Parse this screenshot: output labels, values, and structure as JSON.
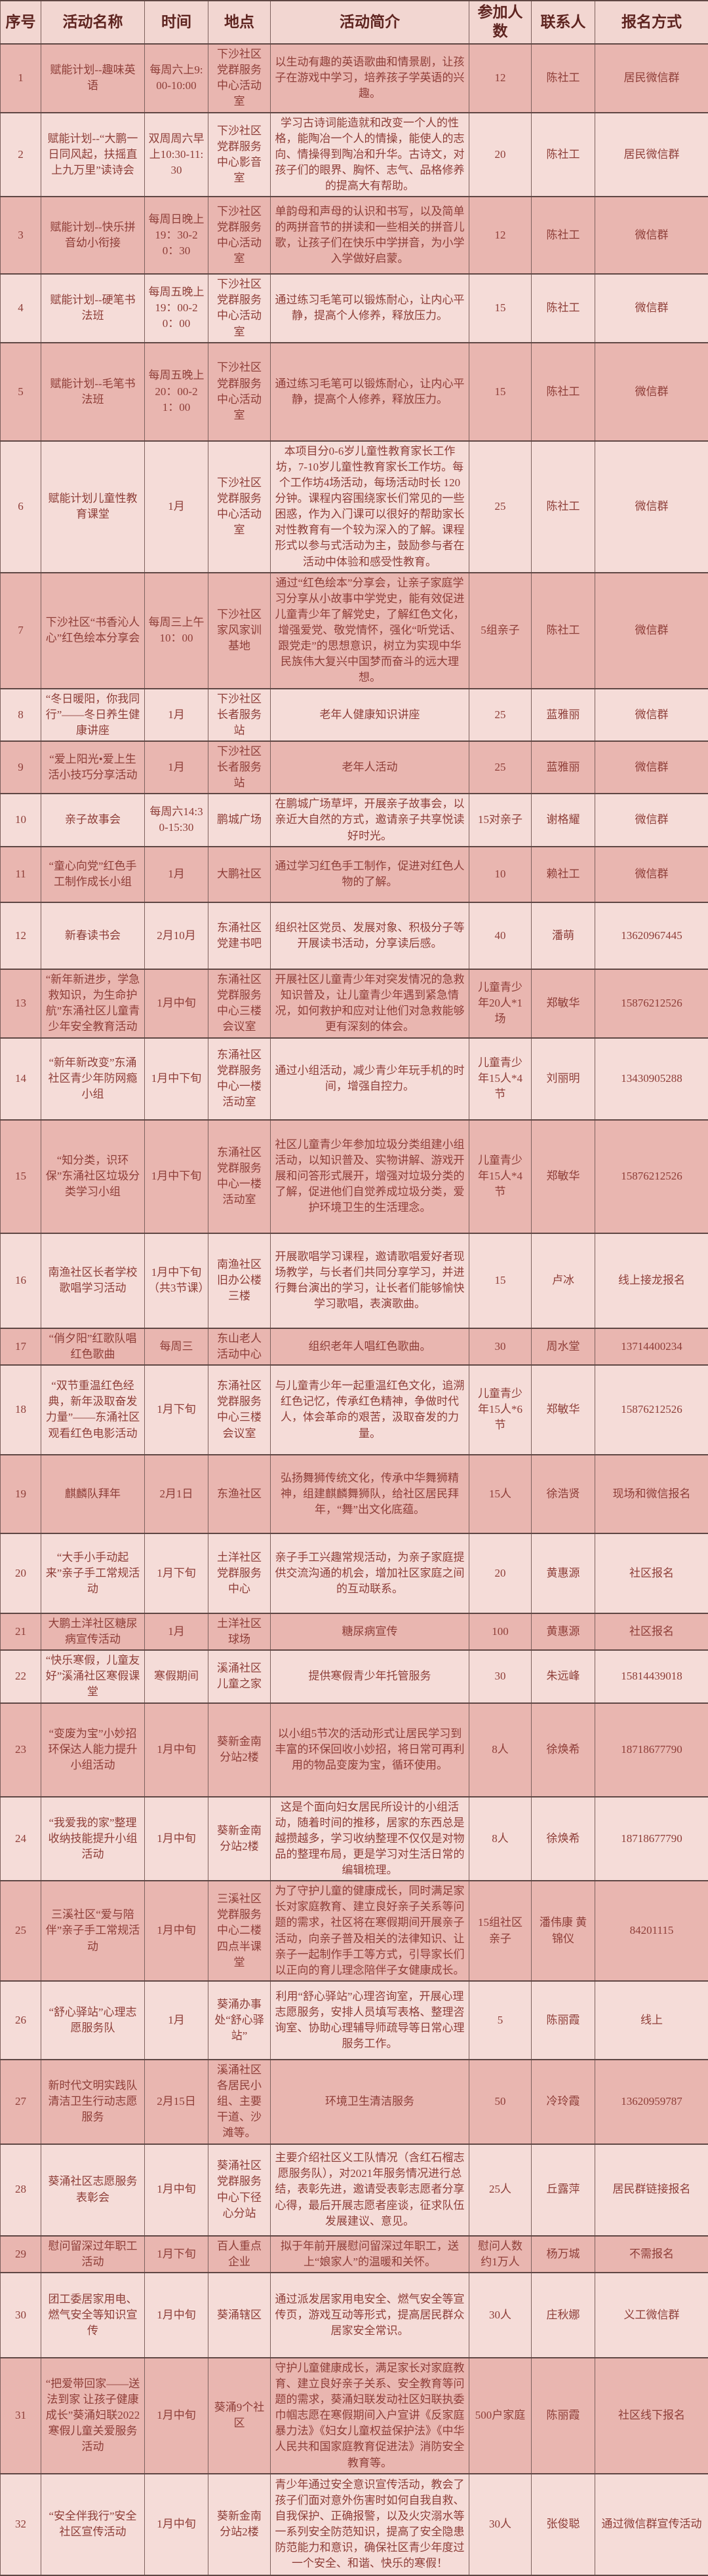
{
  "colors": {
    "header_bg": "#f2d6d1",
    "row_dark_bg": "#e9b6b0",
    "row_light_bg": "#f5dcd8",
    "text": "#8e3e38",
    "grid_line": "#5f4744"
  },
  "table": {
    "columns": [
      {
        "key": "no",
        "label": "序号"
      },
      {
        "key": "name",
        "label": "活动名称"
      },
      {
        "key": "time",
        "label": "时间"
      },
      {
        "key": "place",
        "label": "地点"
      },
      {
        "key": "desc",
        "label": "活动简介"
      },
      {
        "key": "count",
        "label": "参加人数"
      },
      {
        "key": "contact",
        "label": "联系人"
      },
      {
        "key": "signup",
        "label": "报名方式"
      }
    ],
    "rows": [
      {
        "no": "1",
        "name": "赋能计划--趣味英语",
        "time": "每周六上9:00-10:00",
        "place": "下沙社区党群服务中心活动室",
        "desc": "以生动有趣的英语歌曲和情景剧，让孩子在游戏中学习，培养孩子学英语的兴趣。",
        "count": "12",
        "contact": "陈社工",
        "signup": "居民微信群"
      },
      {
        "no": "2",
        "name": "赋能计划--“大鹏一日同风起，扶摇直上九万里”读诗会",
        "time": "双周周六早上10:30-11:30",
        "place": "下沙社区党群服务中心影音室",
        "desc": "学习古诗词能造就和改变一个人的性格，能陶冶一个人的情操，能使人的志向、情操得到陶冶和升华。古诗文，对孩子们的眼界、胸怀、志气、品格修养的提高大有帮助。",
        "count": "20",
        "contact": "陈社工",
        "signup": "居民微信群"
      },
      {
        "no": "3",
        "name": "赋能计划--快乐拼音幼小衔接",
        "time": "每周日晚上19：30-20：30",
        "place": "下沙社区党群服务中心活动室",
        "desc": "单韵母和声母的认识和书写，以及简单的两拼音节的拼读和一些相关的拼音儿歌，让孩子们在快乐中学拼音，为小学入学做好启蒙。",
        "count": "12",
        "contact": "陈社工",
        "signup": "微信群"
      },
      {
        "no": "4",
        "name": "赋能计划--硬笔书法班",
        "time": "每周五晚上19：00-20：00",
        "place": "下沙社区党群服务中心活动室",
        "desc": "通过练习毛笔可以锻炼耐心，让内心平静，提高个人修养，释放压力。",
        "count": "15",
        "contact": "陈社工",
        "signup": "微信群"
      },
      {
        "no": "5",
        "name": "赋能计划--毛笔书法班",
        "time": "每周五晚上20：00-21：00",
        "place": "下沙社区党群服务中心活动室",
        "desc": "通过练习毛笔可以锻炼耐心，让内心平静，提高个人修养，释放压力。",
        "count": "15",
        "contact": "陈社工",
        "signup": "微信群"
      },
      {
        "no": "6",
        "name": "赋能计划儿童性教育课堂",
        "time": "1月",
        "place": "下沙社区党群服务中心活动室",
        "desc": "本项目分0-6岁儿童性教育家长工作坊，7-10岁儿童性教育家长工作坊。每个工作坊4场活动，每场活动时长 120 分钟。课程内容围绕家长们常见的一些困惑，作为入门课可以很好的帮助家长对性教育有一个较为深入的了解。课程形式以参与式活动为主，鼓励参与者在活动中体验和感受性教育。",
        "count": "25",
        "contact": "陈社工",
        "signup": "微信群"
      },
      {
        "no": "7",
        "name": "下沙社区“书香沁人心”红色绘本分享会",
        "time": "每周三上午10：00",
        "place": "下沙社区家风家训基地",
        "desc": "通过“红色绘本”分享会，让亲子家庭学习分享从小故事中学党史，能有效促进儿童青少年了解党史，了解红色文化，增强爱党、敬党情怀，强化“听党话、跟党走”的思想意识，树立为实现中华民族伟大复兴中国梦而奋斗的远大理想。",
        "count": "5组亲子",
        "contact": "陈社工",
        "signup": "微信群"
      },
      {
        "no": "8",
        "name": "“冬日暖阳，你我同行”——冬日养生健康讲座",
        "time": "1月",
        "place": "下沙社区长者服务站",
        "desc": "老年人健康知识讲座",
        "count": "25",
        "contact": "蓝雅丽",
        "signup": "微信群"
      },
      {
        "no": "9",
        "name": "“爱上阳光•爱上生活小技巧分享活动",
        "time": "1月",
        "place": "下沙社区长者服务站",
        "desc": "老年人活动",
        "count": "25",
        "contact": "蓝雅丽",
        "signup": "微信群"
      },
      {
        "no": "10",
        "name": "亲子故事会",
        "time": "每周六14:30-15:30",
        "place": "鹏城广场",
        "desc": "在鹏城广场草坪，开展亲子故事会，以亲近大自然的方式，邀请亲子共享悦读好时光。",
        "count": "15对亲子",
        "contact": "谢格耀",
        "signup": "微信群"
      },
      {
        "no": "11",
        "name": "“童心向党”红色手工制作成长小组",
        "time": "1月",
        "place": "大鹏社区",
        "desc": "通过学习红色手工制作，促进对红色人物的了解。",
        "count": "10",
        "contact": "赖社工",
        "signup": "微信群"
      },
      {
        "no": "12",
        "name": "新春读书会",
        "time": "2月10月",
        "place": "东涌社区党建书吧",
        "desc": "组织社区党员、发展对象、积极分子等开展读书活动，分享读后感。",
        "count": "40",
        "contact": "潘萌",
        "signup": "13620967445"
      },
      {
        "no": "13",
        "name": "“新年新进步，学急救知识，为生命护航”东涌社区儿童青少年安全教育活动",
        "time": "1月中旬",
        "place": "东涌社区党群服务中心三楼会议室",
        "desc": "开展社区儿童青少年对突发情况的急救知识普及，让儿童青少年遇到紧急情况，如何救护和应对让他们对急救能够更有深刻的体会。",
        "count": "儿童青少年20人*1场",
        "contact": "郑敏华",
        "signup": "15876212526"
      },
      {
        "no": "14",
        "name": "“新年新改变”东涌社区青少年防网瘾小组",
        "time": "1月中下旬",
        "place": "东涌社区党群服务中心一楼活动室",
        "desc": "通过小组活动，减少青少年玩手机的时间，增强自控力。",
        "count": "儿童青少年15人*4节",
        "contact": "刘丽明",
        "signup": "13430905288"
      },
      {
        "no": "15",
        "name": "“知分类，识环保”东涌社区垃圾分类学习小组",
        "time": "1月中下旬",
        "place": "东涌社区党群服务中心一楼活动室",
        "desc": "社区儿童青少年参加垃圾分类组建小组活动，以知识普及、实物讲解、游戏开展和问答形式展开，增强对垃圾分类的了解，促进他们自觉养成垃圾分类，爱护环境卫生的生活理念。",
        "count": "儿童青少年15人*4节",
        "contact": "郑敏华",
        "signup": "15876212526"
      },
      {
        "no": "16",
        "name": "南渔社区长者学校歌唱学习活动",
        "time": "1月中下旬（共3节课）",
        "place": "南渔社区旧办公楼三楼",
        "desc": "开展歌唱学习课程，邀请歌唱爱好者现场教学，与长者们共同分享学习，并进行舞台演出的学习，让长者们能够愉快学习歌唱，表演歌曲。",
        "count": "15",
        "contact": "卢冰",
        "signup": "线上接龙报名"
      },
      {
        "no": "17",
        "name": "“俏夕阳”红歌队唱红色歌曲",
        "time": "每周三",
        "place": "东山老人活动中心",
        "desc": "组织老年人唱红色歌曲。",
        "count": "30",
        "contact": "周水堂",
        "signup": "13714400234"
      },
      {
        "no": "18",
        "name": "“双节重温红色经典，新年汲取奋发力量”——东涌社区观看红色电影活动",
        "time": "1月下旬",
        "place": "东涌社区党群服务中心三楼会议室",
        "desc": "与儿童青少年一起重温红色文化，追溯红色记忆，传承红色精神，争做时代人，体会革命的艰苦，汲取奋发的力量。",
        "count": "儿童青少年15人*6节",
        "contact": "郑敏华",
        "signup": "15876212526"
      },
      {
        "no": "19",
        "name": "麒麟队拜年",
        "time": "2月1日",
        "place": "东渔社区",
        "desc": "弘扬舞狮传统文化，传承中华舞狮精神，组建麒麟舞狮队，给社区居民拜年，“舞”出文化底蕴。",
        "count": "15人",
        "contact": "徐浩贤",
        "signup": "现场和微信报名"
      },
      {
        "no": "20",
        "name": "“大手小手动起来”亲子手工常规活动",
        "time": "1月下旬",
        "place": "土洋社区党群服务中心",
        "desc": "亲子手工兴趣常规活动，为亲子家庭提供交流沟通的机会，增加社区家庭之间的互动联系。",
        "count": "20",
        "contact": "黄惠源",
        "signup": "社区报名"
      },
      {
        "no": "21",
        "name": "大鹏土洋社区糖尿病宣传活动",
        "time": "1月",
        "place": "土洋社区球场",
        "desc": "糖尿病宣传",
        "count": "100",
        "contact": "黄惠源",
        "signup": "社区报名"
      },
      {
        "no": "22",
        "name": "“快乐寒假，儿童友好”溪涌社区寒假课堂",
        "time": "寒假期间",
        "place": "溪涌社区儿童之家",
        "desc": "提供寒假青少年托管服务",
        "count": "30",
        "contact": "朱远峰",
        "signup": "15814439018"
      },
      {
        "no": "23",
        "name": "“变废为宝”小妙招环保达人能力提升小组活动",
        "time": "1月中旬",
        "place": "葵新金南分站2楼",
        "desc": "以小组5节次的活动形式让居民学习到丰富的环保回收小妙招，将日常可再利用的物品变废为宝，循环使用。",
        "count": "8人",
        "contact": "徐焕希",
        "signup": "18718677790"
      },
      {
        "no": "24",
        "name": "“我爱我的家”整理收纳技能提升小组活动",
        "time": "1月中旬",
        "place": "葵新金南分站2楼",
        "desc": "这是个面向妇女居民所设计的小组活动，随着时间的推移，居家的东西总是越攒越多，学习收纳整理不仅仅是对物品的整理布局，更是学习对生活日常的编辑梳理。",
        "count": "8人",
        "contact": "徐焕希",
        "signup": "18718677790"
      },
      {
        "no": "25",
        "name": "三溪社区“爱与陪伴”亲子手工常规活动",
        "time": "1月中旬",
        "place": "三溪社区党群服务中心二楼四点半课堂",
        "desc": "为了守护儿童的健康成长，同时满足家长对家庭教育、建立良好亲子关系等问题的需求，社区将在寒假期间开展亲子活动，向亲子普及相关的法律知识、让亲子一起制作手工等方式，引导家长们以正向的育儿理念陪伴子女健康成长。",
        "count": "15组社区亲子",
        "contact": "潘伟康 黄锦仪",
        "signup": "84201115"
      },
      {
        "no": "26",
        "name": "“舒心驿站”心理志愿服务队",
        "time": "1月",
        "place": "葵涌办事处“舒心驿站”",
        "desc": "利用“舒心驿站”心理咨询室，开展心理志愿服务，安排人员填写表格、整理咨询室、协助心理辅导师疏导等日常心理服务工作。",
        "count": "5",
        "contact": "陈丽霞",
        "signup": "线上"
      },
      {
        "no": "27",
        "name": "新时代文明实践队清洁卫生行动志愿服务",
        "time": "2月15日",
        "place": "溪涌社区各居民小组、主要干道、沙滩等。",
        "desc": "环境卫生清洁服务",
        "count": "50",
        "contact": "冷玲霞",
        "signup": "13620959787"
      },
      {
        "no": "28",
        "name": "葵涌社区志愿服务表彰会",
        "time": "1月中旬",
        "place": "葵涌社区党群服务中心下径心分站",
        "desc": "主要介绍社区义工队情况（含红石榴志愿服务队），对2021年服务情况进行总结，表彰先进，邀请受表彰志愿者分享心得，最后开展志愿者座谈，征求队伍发展建议、意见。",
        "count": "25人",
        "contact": "丘露萍",
        "signup": "居民群链接报名"
      },
      {
        "no": "29",
        "name": "慰问留深过年职工活动",
        "time": "1月下旬",
        "place": "百人重点企业",
        "desc": "拟于年前开展慰问留深过年职工，送上“娘家人”的温暖和关怀。",
        "count": "慰问人数约1万人",
        "contact": "杨万城",
        "signup": "不需报名"
      },
      {
        "no": "30",
        "name": "团工委居家用电、燃气安全等知识宣传",
        "time": "1月中旬",
        "place": "葵涌辖区",
        "desc": "通过派发居家用电安全、燃气安全等宣传页，游戏互动等形式，提高居民群众居家安全常识。",
        "count": "30人",
        "contact": "庄秋娜",
        "signup": "义工微信群"
      },
      {
        "no": "31",
        "name": "“把爱带回家——送法到家 让孩子健康成长”葵涌妇联2022寒假儿童关爱服务活动",
        "time": "1月中旬",
        "place": "葵涌9个社区",
        "desc": "守护儿童健康成长，满足家长对家庭教育、建立良好亲子关系、安全教育等问题的需求，葵涌妇联发动社区妇联执委巾帼志愿在寒假期间入户宣讲《反家庭暴力法》《妇女儿童权益保护法》《中华人民共和国家庭教育促进法》消防安全教育等。",
        "count": "500户家庭",
        "contact": "陈丽霞",
        "signup": "社区线下报名"
      },
      {
        "no": "32",
        "name": "“安全伴我行”安全社区宣传活动",
        "time": "1月中旬",
        "place": "葵新金南分站2楼",
        "desc": "青少年通过安全意识宣传活动，教会了孩子们面对意外伤害时如何自我自救、自我保护、正确报警，以及火灾溺水等一系列安全防范知识，提高了安全隐患防范能力和意识，确保社区青少年度过一个安全、和谐、快乐的寒假！",
        "count": "30人",
        "contact": "张俊聪",
        "signup": "通过微信群宣传活动"
      }
    ]
  }
}
